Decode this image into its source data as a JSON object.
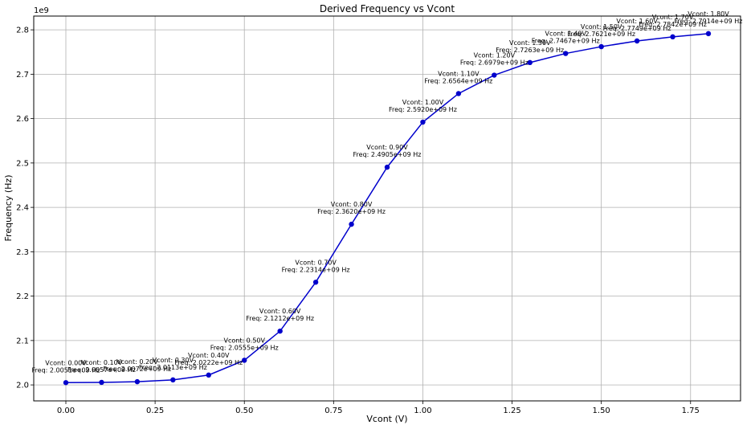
{
  "chart_data": {
    "type": "line",
    "title": "Derived Frequency vs Vcont",
    "xlabel": "Vcont (V)",
    "ylabel": "Frequency (Hz)",
    "y_offset_label": "1e9",
    "xlim": [
      -0.09,
      1.89
    ],
    "ylim": [
      1.964,
      2.831
    ],
    "x_ticks": [
      0.0,
      0.25,
      0.5,
      0.75,
      1.0,
      1.25,
      1.5,
      1.75
    ],
    "x_tick_labels": [
      "0.00",
      "0.25",
      "0.50",
      "0.75",
      "1.00",
      "1.25",
      "1.50",
      "1.75"
    ],
    "y_ticks": [
      2.0,
      2.1,
      2.2,
      2.3,
      2.4,
      2.5,
      2.6,
      2.7,
      2.8
    ],
    "y_tick_labels": [
      "2.0",
      "2.1",
      "2.2",
      "2.3",
      "2.4",
      "2.5",
      "2.6",
      "2.7",
      "2.8"
    ],
    "grid": true,
    "legend": "none",
    "line_color": "#0000cc",
    "x": [
      0.0,
      0.1,
      0.2,
      0.3,
      0.4,
      0.5,
      0.6,
      0.7,
      0.8,
      0.9,
      1.0,
      1.1,
      1.2,
      1.3,
      1.4,
      1.5,
      1.6,
      1.7,
      1.8
    ],
    "y": [
      2.0051,
      2.0057,
      2.0072,
      2.0113,
      2.0222,
      2.0555,
      2.1212,
      2.2314,
      2.362,
      2.4905,
      2.592,
      2.6564,
      2.6979,
      2.7263,
      2.7467,
      2.7621,
      2.7749,
      2.7842,
      2.7914
    ],
    "annotations": [
      {
        "line1": "Vcont: 0.00V",
        "line2": "Freq: 2.0051e+09 Hz"
      },
      {
        "line1": "Vcont: 0.10V",
        "line2": "Freq: 2.0057e+09 Hz"
      },
      {
        "line1": "Vcont: 0.20V",
        "line2": "Freq: 2.0072e+09 Hz"
      },
      {
        "line1": "Vcont: 0.30V",
        "line2": "Freq: 2.0113e+09 Hz"
      },
      {
        "line1": "Vcont: 0.40V",
        "line2": "Freq: 2.0222e+09 Hz"
      },
      {
        "line1": "Vcont: 0.50V",
        "line2": "Freq: 2.0555e+09 Hz"
      },
      {
        "line1": "Vcont: 0.60V",
        "line2": "Freq: 2.1212e+09 Hz"
      },
      {
        "line1": "Vcont: 0.70V",
        "line2": "Freq: 2.2314e+09 Hz"
      },
      {
        "line1": "Vcont: 0.80V",
        "line2": "Freq: 2.3620e+09 Hz"
      },
      {
        "line1": "Vcont: 0.90V",
        "line2": "Freq: 2.4905e+09 Hz"
      },
      {
        "line1": "Vcont: 1.00V",
        "line2": "Freq: 2.5920e+09 Hz"
      },
      {
        "line1": "Vcont: 1.10V",
        "line2": "Freq: 2.6564e+09 Hz"
      },
      {
        "line1": "Vcont: 1.20V",
        "line2": "Freq: 2.6979e+09 Hz"
      },
      {
        "line1": "Vcont: 1.30V",
        "line2": "Freq: 2.7263e+09 Hz"
      },
      {
        "line1": "Vcont: 1.40V",
        "line2": "Freq: 2.7467e+09 Hz"
      },
      {
        "line1": "Vcont: 1.50V",
        "line2": "Freq: 2.7621e+09 Hz"
      },
      {
        "line1": "Vcont: 1.60V",
        "line2": "Freq: 2.7749e+09 Hz"
      },
      {
        "line1": "Vcont: 1.70V",
        "line2": "Freq: 2.7842e+09 Hz"
      },
      {
        "line1": "Vcont: 1.80V",
        "line2": "Freq: 2.7914e+09 Hz"
      }
    ]
  }
}
